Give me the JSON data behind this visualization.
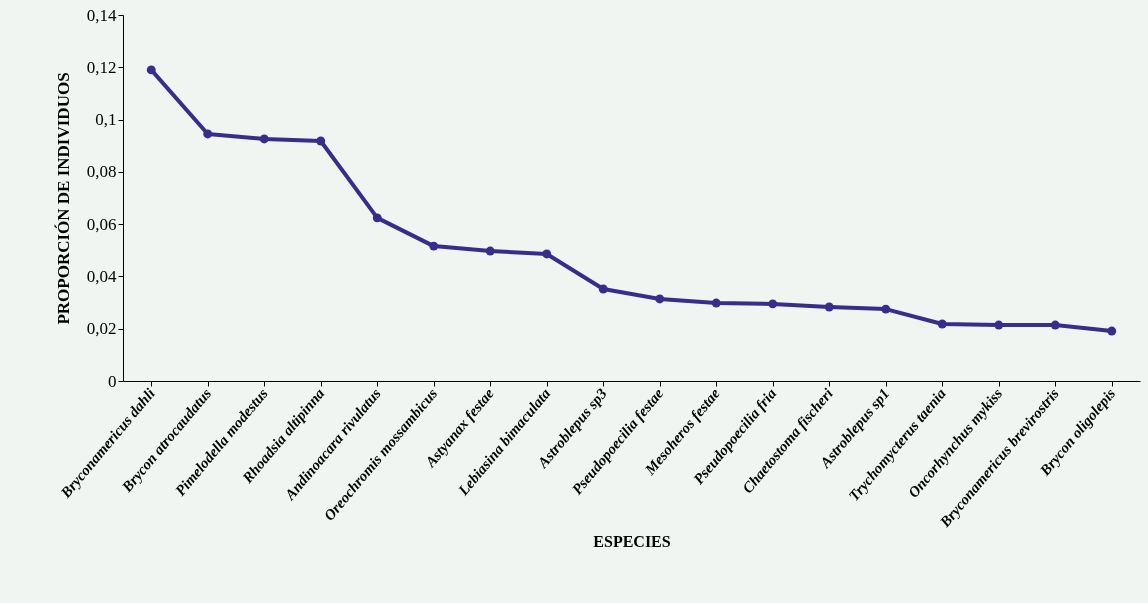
{
  "chart_data": {
    "type": "line",
    "xlabel": "ESPECIES",
    "ylabel": "PROPORCIÓN DE INDIVIDUOS",
    "categories": [
      "Bryconamericus dahli",
      "Brycon atrocaudatus",
      "Pimelodella modestus",
      "Rhoadsia altipinna",
      "Andinoacara rivulatus",
      "Oreochromis mossambicus",
      "Astyanax festae",
      "Lebiasina bimaculata",
      "Astroblepus sp3",
      "Pseudopoecilia festae",
      "Mesoheros festae",
      "Pseudopoecilia fria",
      "Chaetostoma fischeri",
      "Astroblepus sp1",
      "Trychomycterus taenia",
      "Oncorhynchus mykiss",
      "Bryconamericus brevirostris",
      "Brycon oligolepis"
    ],
    "series": [
      {
        "color": "#3a2c8c",
        "values": [
          0.119,
          0.0945,
          0.0926,
          0.0918,
          0.0624,
          0.0516,
          0.0497,
          0.0486,
          0.0352,
          0.0314,
          0.0298,
          0.0295,
          0.0283,
          0.0275,
          0.0218,
          0.0214,
          0.0214,
          0.0191
        ]
      }
    ],
    "ylim": [
      0,
      0.14
    ],
    "yticks": [
      {
        "value": 0,
        "label": "0"
      },
      {
        "value": 0.02,
        "label": "0,02"
      },
      {
        "value": 0.04,
        "label": "0,04"
      },
      {
        "value": 0.06,
        "label": "0,06"
      },
      {
        "value": 0.08,
        "label": "0,08"
      },
      {
        "value": 0.1,
        "label": "0,1"
      },
      {
        "value": 0.12,
        "label": "0,12"
      },
      {
        "value": 0.14,
        "label": "0,14"
      }
    ],
    "grid": false,
    "marker": "circle",
    "line_style": "solid"
  }
}
